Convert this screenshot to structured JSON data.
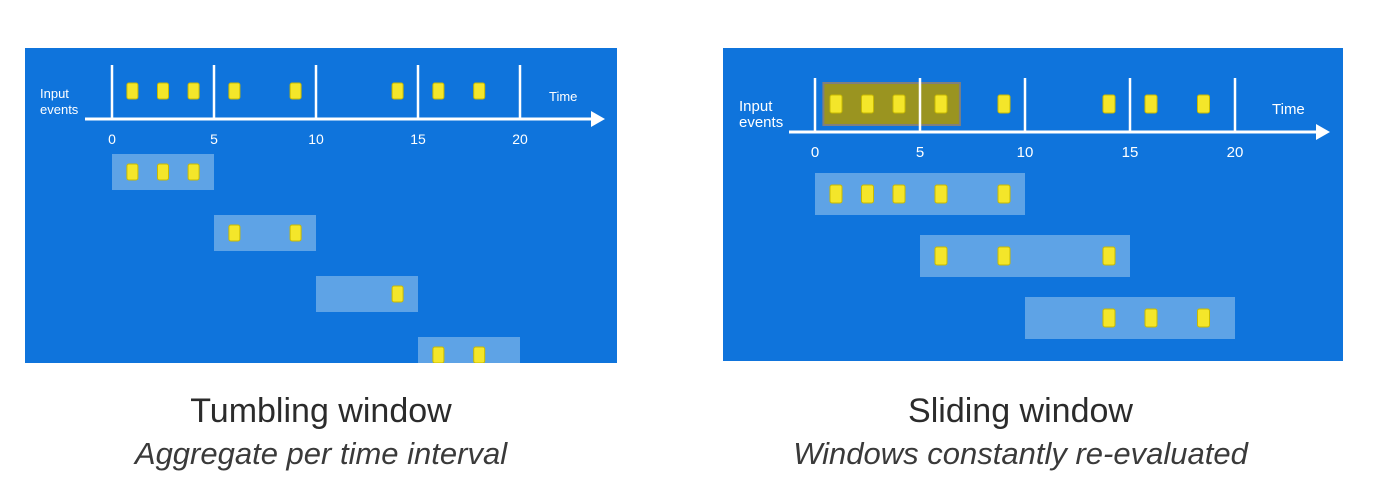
{
  "colors": {
    "panel": "#0f74dc",
    "window": "#5ea3e6",
    "event": "#f4e62a",
    "event_border": "#c8b900",
    "highlight_fill": "#9a9420",
    "highlight_border": "#7f7f7f",
    "axis": "#ffffff"
  },
  "tumbling": {
    "caption_title": "Tumbling window",
    "caption_sub": "Aggregate per time interval",
    "axis": {
      "row_label_line1": "Input",
      "row_label_line2": "events",
      "time_label": "Time",
      "ticks": [
        0,
        5,
        10,
        15,
        20
      ],
      "boundaries": [
        0,
        5,
        10,
        15,
        20
      ]
    },
    "events": [
      1,
      2.5,
      4,
      6,
      9,
      14,
      16,
      18
    ],
    "windows": [
      {
        "start": 0,
        "end": 5,
        "events": [
          1,
          2.5,
          4
        ]
      },
      {
        "start": 5,
        "end": 10,
        "events": [
          6,
          9
        ]
      },
      {
        "start": 10,
        "end": 15,
        "events": [
          14
        ]
      },
      {
        "start": 15,
        "end": 20,
        "events": [
          16,
          18
        ]
      }
    ]
  },
  "sliding": {
    "caption_title": "Sliding window",
    "caption_sub": "Windows constantly re-evaluated",
    "axis": {
      "row_label_line1": "Input",
      "row_label_line2": "events",
      "time_label": "Time",
      "ticks": [
        0,
        5,
        10,
        15,
        20
      ],
      "boundaries": [
        0,
        5,
        10,
        15,
        20
      ]
    },
    "events": [
      1,
      2.5,
      4,
      6,
      9,
      14,
      16,
      18.5
    ],
    "highlight": {
      "start": 0.4,
      "end": 6.9
    },
    "windows": [
      {
        "start": 0,
        "end": 10,
        "events": [
          1,
          2.5,
          4,
          6,
          9
        ]
      },
      {
        "start": 5,
        "end": 15,
        "events": [
          6,
          9,
          14
        ]
      },
      {
        "start": 10,
        "end": 20,
        "events": [
          14,
          16,
          18.5
        ]
      }
    ]
  }
}
